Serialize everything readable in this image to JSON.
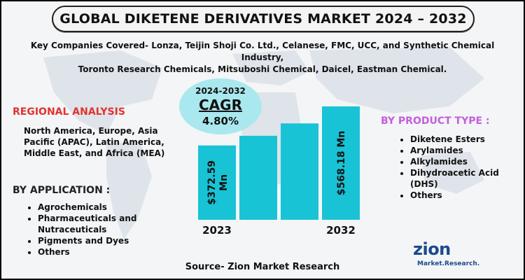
{
  "header": {
    "title": "GLOBAL DIKETENE DERIVATIVES MARKET 2024 – 2032"
  },
  "companies": {
    "line1": "Key Companies Covered- Lonza, Teijin Shoji Co. Ltd., Celanese, FMC, UCC, and Synthetic Chemical Industry,",
    "line2": "Toronto Research Chemicals, Mitsuboshi Chemical, Daicel, Eastman Chemical."
  },
  "cagr": {
    "range": "2024-2032",
    "label": "CAGR",
    "value": "4.80%"
  },
  "regional": {
    "title": "REGIONAL ANALYSIS",
    "text": "North America, Europe, Asia Pacific (APAC), Latin America, Middle East, and Africa (MEA)"
  },
  "application": {
    "title": "BY APPLICATION :",
    "items": [
      "Agrochemicals",
      "Pharmaceuticals and Nutraceuticals",
      "Pigments and Dyes",
      "Others"
    ]
  },
  "product": {
    "title": "BY PRODUCT TYPE :",
    "items": [
      "Diketene Esters",
      "Arylamides",
      "Alkylamides",
      "Dihydroacetic Acid (DHS)",
      "Others"
    ]
  },
  "chart_data": {
    "type": "bar",
    "categories": [
      "2023",
      "",
      "",
      "2032"
    ],
    "values": [
      372.59,
      421,
      483,
      568.18
    ],
    "data_labels": [
      "$372.59 Mn",
      "",
      "",
      "$568.18 Mn"
    ],
    "title": "",
    "xlabel": "",
    "ylabel": "",
    "bar_color": "#18c3d6",
    "grid": false
  },
  "source": {
    "text": "Source- Zion Market Research"
  },
  "logo": {
    "brand": "zion",
    "sub": "Market.Research."
  },
  "colors": {
    "bar": "#18c3d6",
    "cagr_bg": "#a9e8ee",
    "regional_title": "#e0332f",
    "product_title": "#c45edb",
    "logo": "#1d4a8c"
  }
}
